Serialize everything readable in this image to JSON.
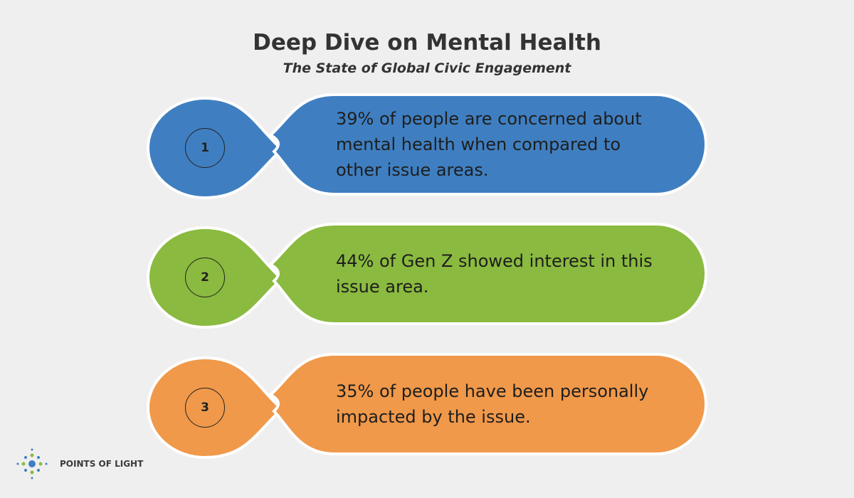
{
  "header": {
    "title": "Deep Dive on Mental Health",
    "subtitle": "The State of Global Civic Engagement"
  },
  "items": [
    {
      "number": "1",
      "text": "39% of people are concerned about mental health when compared to other issue areas."
    },
    {
      "number": "2",
      "text": "44% of Gen Z showed interest in this issue area."
    },
    {
      "number": "3",
      "text": "35% of people have been personally impacted by the issue."
    }
  ],
  "footer": {
    "logo_text": "POINTS OF LIGHT"
  }
}
